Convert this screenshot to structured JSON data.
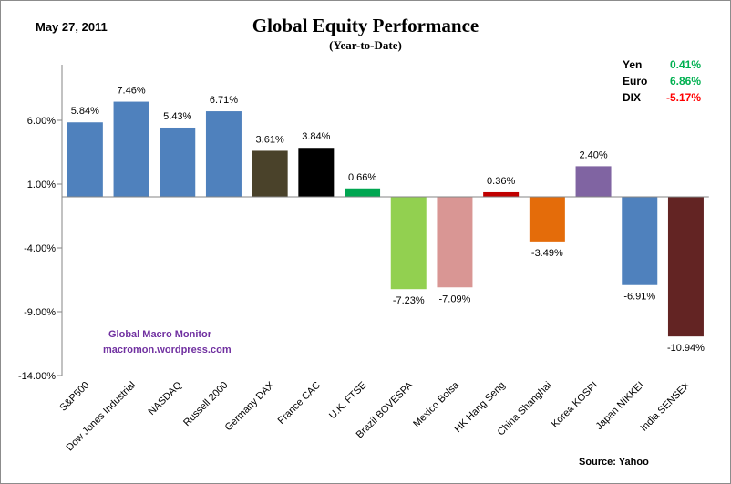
{
  "header": {
    "date": "May 27,  2011",
    "source": "Source:  Yahoo"
  },
  "watermark": {
    "line1": "Global  Macro  Monitor",
    "line2": "macromon.wordpress.com",
    "color": "#7030a0"
  },
  "currencies": [
    {
      "name": "Yen",
      "value": "0.41%",
      "color": "#00b050"
    },
    {
      "name": "Euro",
      "value": "6.86%",
      "color": "#00b050"
    },
    {
      "name": "DIX",
      "value": "-5.17%",
      "color": "#ff0000"
    }
  ],
  "chart_data": {
    "type": "bar",
    "title": "Global Equity Performance",
    "subtitle": "(Year-to-Date)",
    "ylim": [
      -14,
      11
    ],
    "yticks": [
      6,
      1,
      -4,
      -9,
      -14
    ],
    "ytick_labels": [
      "6.00%",
      "1.00%",
      "-4.00%",
      "-9.00%",
      "-14.00%"
    ],
    "categories": [
      "S&P500",
      "Dow Jones Industrial",
      "NASDAQ",
      "Russell 2000",
      "Germany DAX",
      "France CAC",
      "U.K. FTSE",
      "Brazil BOVESPA",
      "Mexico Bolsa",
      "HK Hang Seng",
      "China Shanghai",
      "Korea KOSPI",
      "Japan NIKKEI",
      "India SENSEX"
    ],
    "values": [
      5.84,
      7.46,
      5.43,
      6.71,
      3.61,
      3.84,
      0.66,
      -7.23,
      -7.09,
      0.36,
      -3.49,
      2.4,
      -6.91,
      -10.94
    ],
    "value_labels": [
      "5.84%",
      "7.46%",
      "5.43%",
      "6.71%",
      "3.61%",
      "3.84%",
      "0.66%",
      "-7.23%",
      "-7.09%",
      "0.36%",
      "-3.49%",
      "2.40%",
      "-6.91%",
      "-10.94%"
    ],
    "colors": [
      "#4f81bd",
      "#4f81bd",
      "#4f81bd",
      "#4f81bd",
      "#4a422a",
      "#000000",
      "#00a651",
      "#92d050",
      "#d99694",
      "#c00000",
      "#e46c0a",
      "#8064a2",
      "#4f81bd",
      "#632423"
    ]
  }
}
